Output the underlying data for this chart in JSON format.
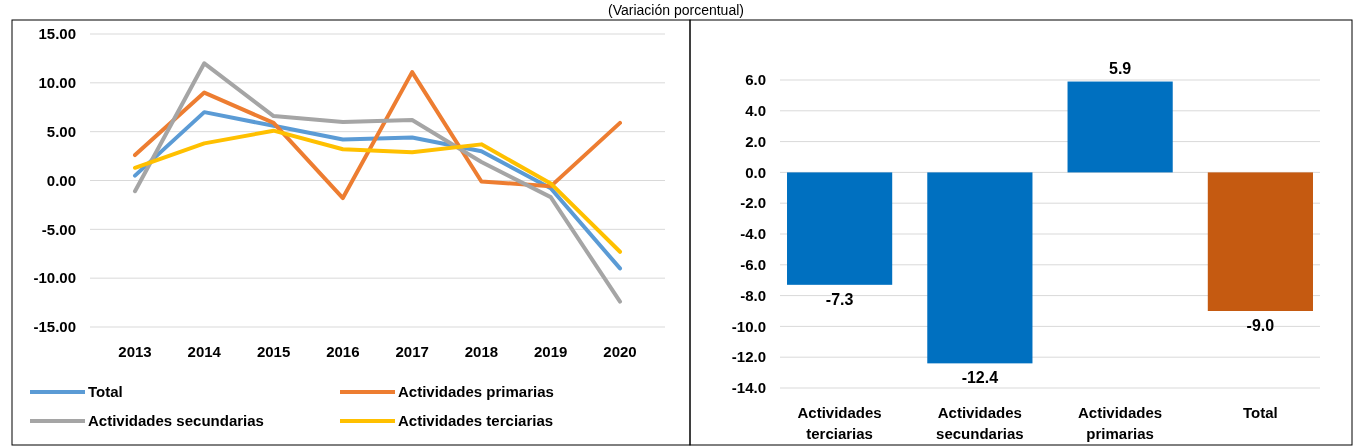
{
  "chart_data": [
    {
      "type": "line",
      "title": "(Variación porcentual)",
      "categories": [
        "2013",
        "2014",
        "2015",
        "2016",
        "2017",
        "2018",
        "2019",
        "2020"
      ],
      "ylim": [
        -15,
        15
      ],
      "yticks": [
        {
          "value": -15,
          "label": "-15.00"
        },
        {
          "value": -10,
          "label": "-10.00"
        },
        {
          "value": -5,
          "label": "-5.00"
        },
        {
          "value": 0,
          "label": "0.00"
        },
        {
          "value": 5,
          "label": "5.00"
        },
        {
          "value": 10,
          "label": "10.00"
        },
        {
          "value": 15,
          "label": "15.00"
        }
      ],
      "grid": "y",
      "legend": "bottom",
      "series": [
        {
          "name": "Total",
          "color": "#5b9bd5",
          "values": [
            0.5,
            7.0,
            5.6,
            4.2,
            4.4,
            3.0,
            -0.8,
            -9.0
          ]
        },
        {
          "name": "Actividades primarias",
          "color": "#ed7d31",
          "values": [
            2.6,
            9.0,
            5.9,
            -1.8,
            11.1,
            -0.1,
            -0.6,
            5.9
          ]
        },
        {
          "name": "Actividades secundarias",
          "color": "#a5a5a5",
          "values": [
            -1.1,
            12.0,
            6.6,
            6.0,
            6.2,
            1.9,
            -1.7,
            -12.4
          ]
        },
        {
          "name": "Actividades terciarias",
          "color": "#ffc000",
          "values": [
            1.3,
            3.8,
            5.1,
            3.2,
            2.9,
            3.7,
            -0.3,
            -7.3
          ]
        }
      ]
    },
    {
      "type": "bar",
      "categories": [
        "Actividades terciarias",
        "Actividades secundarias",
        "Actividades primarias",
        "Total"
      ],
      "values": [
        -7.3,
        -12.4,
        5.9,
        -9.0
      ],
      "colors": [
        "#0070c0",
        "#0070c0",
        "#0070c0",
        "#c55a11"
      ],
      "ylim": [
        -14,
        6
      ],
      "yticks": [
        {
          "value": -14,
          "label": "-14.0"
        },
        {
          "value": -12,
          "label": "-12.0"
        },
        {
          "value": -10,
          "label": "-10.0"
        },
        {
          "value": -8,
          "label": "-8.0"
        },
        {
          "value": -6,
          "label": "-6.0"
        },
        {
          "value": -4,
          "label": "-4.0"
        },
        {
          "value": -2,
          "label": "-2.0"
        },
        {
          "value": 0,
          "label": "0.0"
        },
        {
          "value": 2,
          "label": "2.0"
        },
        {
          "value": 4,
          "label": "4.0"
        },
        {
          "value": 6,
          "label": "6.0"
        }
      ],
      "grid": "y",
      "value_labels": [
        "-7.3",
        "-12.4",
        "5.9",
        "-9.0"
      ]
    }
  ]
}
